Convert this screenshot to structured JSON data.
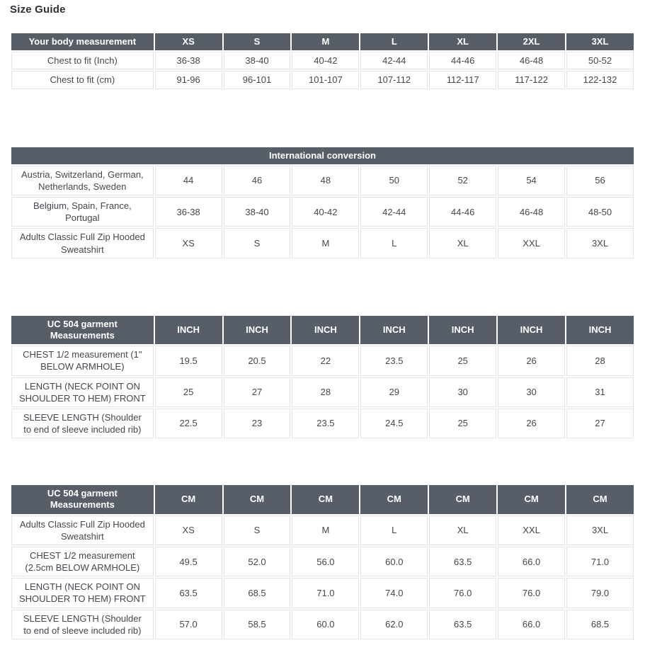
{
  "page": {
    "title": "Size Guide"
  },
  "colors": {
    "header_background": "#575e67",
    "header_text": "#ffffff",
    "cell_text": "#44474d",
    "cell_border": "#e2e3e4",
    "title_text": "#2d2f34"
  },
  "tables": [
    {
      "name": "body-measurement-table",
      "header": [
        "Your body measurement",
        "XS",
        "S",
        "M",
        "L",
        "XL",
        "2XL",
        "3XL"
      ],
      "rows": [
        [
          "Chest to fit (Inch)",
          "36-38",
          "38-40",
          "40-42",
          "42-44",
          "44-46",
          "46-48",
          "50-52"
        ],
        [
          "Chest to fit (cm)",
          "91-96",
          "96-101",
          "101-107",
          "107-112",
          "112-117",
          "117-122",
          "122-132"
        ]
      ]
    },
    {
      "name": "international-conversion-table",
      "banner_header": "International conversion",
      "columns": 8,
      "rows": [
        [
          "Austria, Switzerland, German, Netherlands, Sweden",
          "44",
          "46",
          "48",
          "50",
          "52",
          "54",
          "56"
        ],
        [
          "Belgium, Spain, France, Portugal",
          "36-38",
          "38-40",
          "40-42",
          "42-44",
          "44-46",
          "46-48",
          "48-50"
        ],
        [
          "Adults Classic Full Zip Hooded Sweatshirt",
          "XS",
          "S",
          "M",
          "L",
          "XL",
          "XXL",
          "3XL"
        ]
      ]
    },
    {
      "name": "garment-measurements-inch-table",
      "header": [
        "UC 504 garment Measurements",
        "INCH",
        "INCH",
        "INCH",
        "INCH",
        "INCH",
        "INCH",
        "INCH"
      ],
      "rows": [
        [
          "CHEST 1/2 measurement (1\" BELOW ARMHOLE)",
          "19.5",
          "20.5",
          "22",
          "23.5",
          "25",
          "26",
          "28"
        ],
        [
          "LENGTH (NECK POINT ON SHOULDER TO HEM) FRONT",
          "25",
          "27",
          "28",
          "29",
          "30",
          "30",
          "31"
        ],
        [
          "SLEEVE LENGTH (Shoulder to end of sleeve included rib)",
          "22.5",
          "23",
          "23.5",
          "24.5",
          "25",
          "26",
          "27"
        ]
      ]
    },
    {
      "name": "garment-measurements-cm-table",
      "header": [
        "UC 504 garment Measurements",
        "CM",
        "CM",
        "CM",
        "CM",
        "CM",
        "CM",
        "CM"
      ],
      "rows": [
        [
          "Adults Classic Full Zip Hooded Sweatshirt",
          "XS",
          "S",
          "M",
          "L",
          "XL",
          "XXL",
          "3XL"
        ],
        [
          "CHEST 1/2 measurement (2.5cm BELOW ARMHOLE)",
          "49.5",
          "52.0",
          "56.0",
          "60.0",
          "63.5",
          "66.0",
          "71.0"
        ],
        [
          "LENGTH (NECK POINT ON SHOULDER TO HEM) FRONT",
          "63.5",
          "68.5",
          "71.0",
          "74.0",
          "76.0",
          "76.0",
          "79.0"
        ],
        [
          "SLEEVE LENGTH (Shoulder to end of sleeve included rib)",
          "57.0",
          "58.5",
          "60.0",
          "62.0",
          "63.5",
          "66.0",
          "68.5"
        ]
      ]
    }
  ]
}
